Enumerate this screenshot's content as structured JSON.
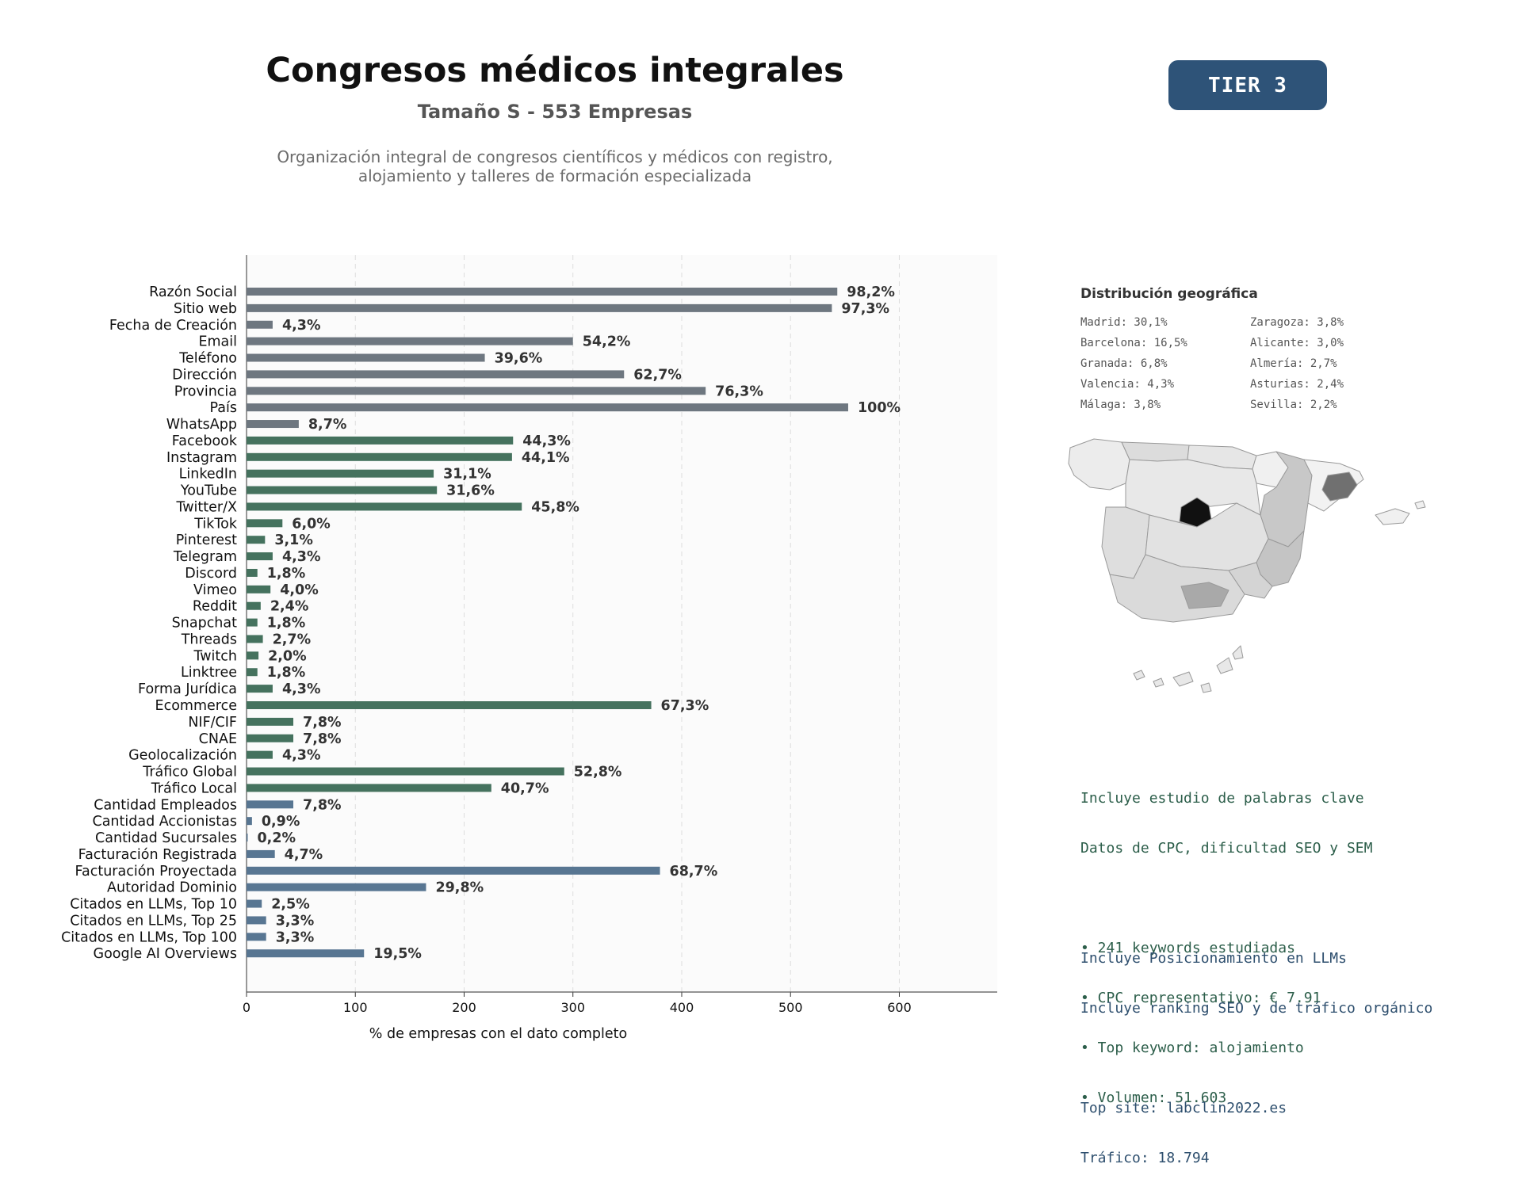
{
  "header": {
    "title": "Congresos médicos integrales",
    "subtitle": "Tamaño S - 553 Empresas",
    "description_line1": "Organización integral de congresos científicos y médicos con registro,",
    "description_line2": "alojamiento y talleres de formación especializada",
    "tier_label": "TIER 3"
  },
  "chart_data": {
    "type": "bar",
    "orientation": "horizontal",
    "xlabel": "% de empresas con el dato completo",
    "ylabel": "",
    "xlim": [
      0,
      690
    ],
    "xticks": [
      0,
      100,
      200,
      300,
      400,
      500,
      600
    ],
    "grid": "vertical dashed",
    "colors": {
      "grey": "#6e7780",
      "green": "#45725e",
      "blue": "#587692"
    },
    "categories": [
      "Razón Social",
      "Sitio web",
      "Fecha de Creación",
      "Email",
      "Teléfono",
      "Dirección",
      "Provincia",
      "País",
      "WhatsApp",
      "Facebook",
      "Instagram",
      "LinkedIn",
      "YouTube",
      "Twitter/X",
      "TikTok",
      "Pinterest",
      "Telegram",
      "Discord",
      "Vimeo",
      "Reddit",
      "Snapchat",
      "Threads",
      "Twitch",
      "Linktree",
      "Forma Jurídica",
      "Ecommerce",
      "NIF/CIF",
      "CNAE",
      "Geolocalización",
      "Tráfico Global",
      "Tráfico Local",
      "Cantidad Empleados",
      "Cantidad Accionistas",
      "Cantidad Sucursales",
      "Facturación Registrada",
      "Facturación Proyectada",
      "Autoridad Dominio",
      "Citados en LLMs, Top 10",
      "Citados en LLMs, Top 25",
      "Citados en LLMs, Top 100",
      "Google AI Overviews"
    ],
    "values": [
      543,
      538,
      24,
      300,
      219,
      347,
      422,
      553,
      48,
      245,
      244,
      172,
      175,
      253,
      33,
      17,
      24,
      10,
      22,
      13,
      10,
      15,
      11,
      10,
      24,
      372,
      43,
      43,
      24,
      292,
      225,
      43,
      5,
      1,
      26,
      380,
      165,
      14,
      18,
      18,
      108
    ],
    "labels": [
      "98,2%",
      "97,3%",
      "4,3%",
      "54,2%",
      "39,6%",
      "62,7%",
      "76,3%",
      "100%",
      "8,7%",
      "44,3%",
      "44,1%",
      "31,1%",
      "31,6%",
      "45,8%",
      "6,0%",
      "3,1%",
      "4,3%",
      "1,8%",
      "4,0%",
      "2,4%",
      "1,8%",
      "2,7%",
      "2,0%",
      "1,8%",
      "4,3%",
      "67,3%",
      "7,8%",
      "7,8%",
      "4,3%",
      "52,8%",
      "40,7%",
      "7,8%",
      "0,9%",
      "0,2%",
      "4,7%",
      "68,7%",
      "29,8%",
      "2,5%",
      "3,3%",
      "3,3%",
      "19,5%"
    ],
    "groups": [
      "grey",
      "grey",
      "grey",
      "grey",
      "grey",
      "grey",
      "grey",
      "grey",
      "grey",
      "green",
      "green",
      "green",
      "green",
      "green",
      "green",
      "green",
      "green",
      "green",
      "green",
      "green",
      "green",
      "green",
      "green",
      "green",
      "green",
      "green",
      "green",
      "green",
      "green",
      "green",
      "green",
      "blue",
      "blue",
      "blue",
      "blue",
      "blue",
      "blue",
      "blue",
      "blue",
      "blue",
      "blue"
    ]
  },
  "geo": {
    "title": "Distribución geográfica",
    "items": [
      "Madrid: 30,1%",
      "Zaragoza: 3,8%",
      "Barcelona: 16,5%",
      "Alicante: 3,0%",
      "Granada: 6,8%",
      "Almería: 2,7%",
      "Valencia: 4,3%",
      "Asturias: 2,4%",
      "Málaga: 3,8%",
      "Sevilla: 2,2%"
    ]
  },
  "seo": {
    "line1": "Incluye estudio de palabras clave",
    "line2": "Datos de CPC, dificultad SEO y SEM",
    "bullet1": "• 241 keywords estudiadas",
    "bullet2": "• CPC representativo: € 7.91",
    "bullet3": "• Top keyword: alojamiento",
    "bullet4": "• Volumen: 51.603"
  },
  "llm": {
    "line1": "Incluye Posicionamiento en LLMs",
    "line2": "Incluye ranking SEO y de tráfico orgánico",
    "top_site": "Top site: labclin2022.es",
    "traffic": "Tráfico: 18.794"
  }
}
